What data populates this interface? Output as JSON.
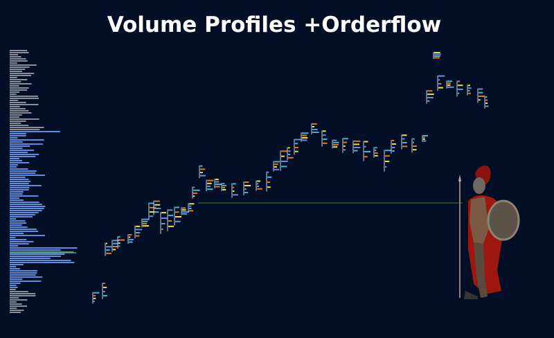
{
  "header": {
    "title": "Volume Profiles +Orderflow"
  }
}
